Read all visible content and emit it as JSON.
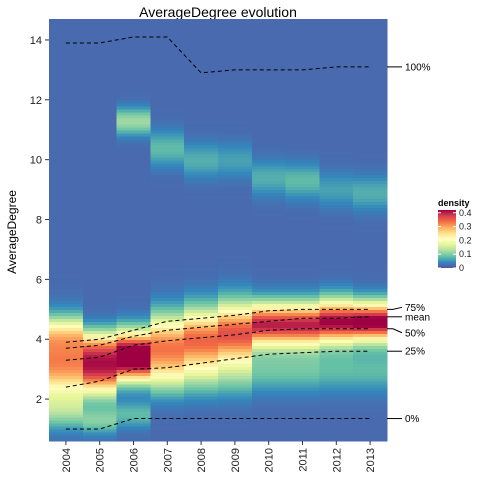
{
  "chart_data": {
    "type": "heatmap",
    "title": "AverageDegree evolution",
    "xlabel": "",
    "ylabel": "AverageDegree",
    "categories": [
      "2004",
      "2005",
      "2006",
      "2007",
      "2008",
      "2009",
      "2010",
      "2011",
      "2012",
      "2013"
    ],
    "y_ticks": [
      2,
      4,
      6,
      8,
      10,
      12,
      14
    ],
    "ylim": [
      0.6,
      14.6
    ],
    "density_scale": {
      "title": "density",
      "ticks": [
        0,
        0.1,
        0.2,
        0.3,
        0.4
      ],
      "tick_labels": [
        "0",
        "0.1",
        "0.2",
        "0.3",
        "0.4"
      ],
      "range": [
        0,
        0.42
      ]
    },
    "palette": [
      "#5e4fa2",
      "#3288bd",
      "#66c2a5",
      "#abdda4",
      "#e6f598",
      "#ffffbf",
      "#fee08b",
      "#fdae61",
      "#f46d43",
      "#d53e4f",
      "#9e0142"
    ],
    "density_columns": [
      {
        "year": "2004",
        "peaks": [
          {
            "y": 3.2,
            "h": 0.3,
            "s": 0.8
          },
          {
            "y": 4.2,
            "h": 0.12,
            "s": 0.4
          },
          {
            "y": 1.6,
            "h": 0.08,
            "s": 0.4
          }
        ],
        "base": 0.02
      },
      {
        "year": "2005",
        "peaks": [
          {
            "y": 3.0,
            "h": 0.36,
            "s": 0.6
          },
          {
            "y": 3.8,
            "h": 0.16,
            "s": 0.4
          },
          {
            "y": 1.3,
            "h": 0.08,
            "s": 0.3
          }
        ],
        "base": 0.02
      },
      {
        "year": "2006",
        "peaks": [
          {
            "y": 3.6,
            "h": 0.4,
            "s": 0.5
          },
          {
            "y": 3.0,
            "h": 0.16,
            "s": 0.4
          },
          {
            "y": 11.3,
            "h": 0.1,
            "s": 0.3
          },
          {
            "y": 1.5,
            "h": 0.06,
            "s": 0.3
          }
        ],
        "base": 0.02
      },
      {
        "year": "2007",
        "peaks": [
          {
            "y": 3.8,
            "h": 0.3,
            "s": 0.7
          },
          {
            "y": 2.8,
            "h": 0.08,
            "s": 0.5
          },
          {
            "y": 10.4,
            "h": 0.06,
            "s": 0.4
          }
        ],
        "base": 0.02
      },
      {
        "year": "2008",
        "peaks": [
          {
            "y": 4.0,
            "h": 0.32,
            "s": 0.7
          },
          {
            "y": 2.8,
            "h": 0.07,
            "s": 0.5
          },
          {
            "y": 10.0,
            "h": 0.05,
            "s": 0.4
          }
        ],
        "base": 0.02
      },
      {
        "year": "2009",
        "peaks": [
          {
            "y": 4.2,
            "h": 0.34,
            "s": 0.7
          },
          {
            "y": 2.8,
            "h": 0.07,
            "s": 0.5
          },
          {
            "y": 10.0,
            "h": 0.04,
            "s": 0.4
          }
        ],
        "base": 0.02
      },
      {
        "year": "2010",
        "peaks": [
          {
            "y": 4.5,
            "h": 0.38,
            "s": 0.5
          },
          {
            "y": 3.0,
            "h": 0.07,
            "s": 0.5
          },
          {
            "y": 9.4,
            "h": 0.05,
            "s": 0.4
          }
        ],
        "base": 0.02
      },
      {
        "year": "2011",
        "peaks": [
          {
            "y": 4.5,
            "h": 0.38,
            "s": 0.5
          },
          {
            "y": 3.0,
            "h": 0.07,
            "s": 0.5
          },
          {
            "y": 9.3,
            "h": 0.06,
            "s": 0.4
          }
        ],
        "base": 0.02
      },
      {
        "year": "2012",
        "peaks": [
          {
            "y": 4.6,
            "h": 0.4,
            "s": 0.5
          },
          {
            "y": 3.0,
            "h": 0.06,
            "s": 0.5
          },
          {
            "y": 9.0,
            "h": 0.04,
            "s": 0.4
          }
        ],
        "base": 0.02
      },
      {
        "year": "2013",
        "peaks": [
          {
            "y": 4.6,
            "h": 0.42,
            "s": 0.45
          },
          {
            "y": 3.0,
            "h": 0.06,
            "s": 0.5
          },
          {
            "y": 8.9,
            "h": 0.05,
            "s": 0.4
          }
        ],
        "base": 0.02
      }
    ],
    "series": [
      {
        "name": "100%",
        "values": [
          13.9,
          13.9,
          14.1,
          14.1,
          12.9,
          13.0,
          13.0,
          13.0,
          13.1,
          13.1
        ]
      },
      {
        "name": "75%",
        "values": [
          3.9,
          4.0,
          4.3,
          4.6,
          4.7,
          4.8,
          4.95,
          5.0,
          5.0,
          5.0
        ]
      },
      {
        "name": "mean",
        "values": [
          3.7,
          3.8,
          4.1,
          4.3,
          4.4,
          4.5,
          4.6,
          4.7,
          4.7,
          4.75
        ]
      },
      {
        "name": "50%",
        "values": [
          3.3,
          3.4,
          3.8,
          3.95,
          4.05,
          4.15,
          4.3,
          4.35,
          4.35,
          4.35
        ]
      },
      {
        "name": "25%",
        "values": [
          2.4,
          2.6,
          3.0,
          3.05,
          3.2,
          3.35,
          3.5,
          3.55,
          3.6,
          3.6
        ]
      },
      {
        "name": "0%",
        "values": [
          1.0,
          1.0,
          1.35,
          1.35,
          1.35,
          1.35,
          1.35,
          1.35,
          1.35,
          1.35
        ]
      }
    ]
  }
}
